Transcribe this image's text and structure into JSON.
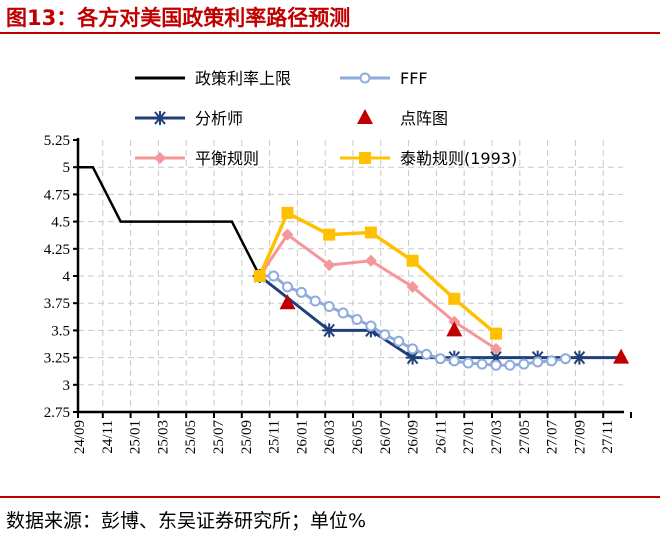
{
  "title": "图13：各方对美国政策利率路径预测",
  "source": "数据来源：彭博、东吴证券研究所；单位%",
  "chart_data": {
    "type": "line",
    "title": "",
    "ylim": [
      2.75,
      5.25
    ],
    "yticks": [
      "5.25",
      "5",
      "4.75",
      "4.5",
      "4.25",
      "4",
      "3.75",
      "3.5",
      "3.25",
      "3",
      "2.75"
    ],
    "xticks": [
      "24/09",
      "24/11",
      "25/01",
      "25/03",
      "25/05",
      "25/07",
      "25/09",
      "25/11",
      "26/01",
      "26/03",
      "26/05",
      "26/07",
      "26/09",
      "26/11",
      "27/01",
      "27/03",
      "27/05",
      "27/07",
      "27/09",
      "27/11"
    ],
    "x_start": "24/09",
    "grid": true,
    "legend_position": "top",
    "series": [
      {
        "name": "政策利率上限",
        "color": "#000000",
        "marker": "none",
        "points": [
          [
            "24/09",
            5
          ],
          [
            "24/10",
            5
          ],
          [
            "24/12",
            4.5
          ],
          [
            "25/08",
            4.5
          ],
          [
            "25/10",
            4.0
          ]
        ]
      },
      {
        "name": "FFF",
        "color": "#8faadc",
        "marker": "circle",
        "points": [
          [
            "25/10",
            4.0
          ],
          [
            "25/11",
            4.0
          ],
          [
            "25/12",
            3.9
          ],
          [
            "26/01",
            3.85
          ],
          [
            "26/02",
            3.77
          ],
          [
            "26/03",
            3.72
          ],
          [
            "26/04",
            3.66
          ],
          [
            "26/05",
            3.6
          ],
          [
            "26/06",
            3.54
          ],
          [
            "26/07",
            3.46
          ],
          [
            "26/08",
            3.4
          ],
          [
            "26/09",
            3.33
          ],
          [
            "26/10",
            3.28
          ],
          [
            "26/11",
            3.24
          ],
          [
            "26/12",
            3.22
          ],
          [
            "27/01",
            3.2
          ],
          [
            "27/02",
            3.19
          ],
          [
            "27/03",
            3.18
          ],
          [
            "27/04",
            3.18
          ],
          [
            "27/05",
            3.19
          ],
          [
            "27/06",
            3.21
          ],
          [
            "27/07",
            3.22
          ],
          [
            "27/08",
            3.24
          ]
        ]
      },
      {
        "name": "分析师",
        "color": "#1f3f7a",
        "marker": "star",
        "points": [
          [
            "25/10",
            4.0
          ],
          [
            "26/03",
            3.5
          ],
          [
            "26/06",
            3.5
          ],
          [
            "26/09",
            3.25
          ],
          [
            "26/12",
            3.25
          ],
          [
            "27/03",
            3.25
          ],
          [
            "27/06",
            3.25
          ],
          [
            "27/09",
            3.25
          ],
          [
            "27/12",
            3.25
          ]
        ],
        "marker_skip_last": true
      },
      {
        "name": "点阵图",
        "color": "#c00000",
        "marker": "triangle",
        "line": false,
        "points": [
          [
            "25/12",
            3.75
          ],
          [
            "26/12",
            3.5
          ],
          [
            "27/12",
            3.25
          ]
        ]
      },
      {
        "name": "平衡规则",
        "color": "#f4979a",
        "marker": "diamond",
        "points": [
          [
            "25/10",
            4.0
          ],
          [
            "25/12",
            4.38
          ],
          [
            "26/03",
            4.1
          ],
          [
            "26/06",
            4.14
          ],
          [
            "26/09",
            3.9
          ],
          [
            "26/12",
            3.58
          ],
          [
            "27/03",
            3.33
          ]
        ]
      },
      {
        "name": "泰勒规则(1993)",
        "color": "#ffc000",
        "marker": "square",
        "points": [
          [
            "25/10",
            4.0
          ],
          [
            "25/12",
            4.58
          ],
          [
            "26/03",
            4.38
          ],
          [
            "26/06",
            4.4
          ],
          [
            "26/09",
            4.14
          ],
          [
            "26/12",
            3.79
          ],
          [
            "27/03",
            3.47
          ]
        ]
      }
    ]
  }
}
